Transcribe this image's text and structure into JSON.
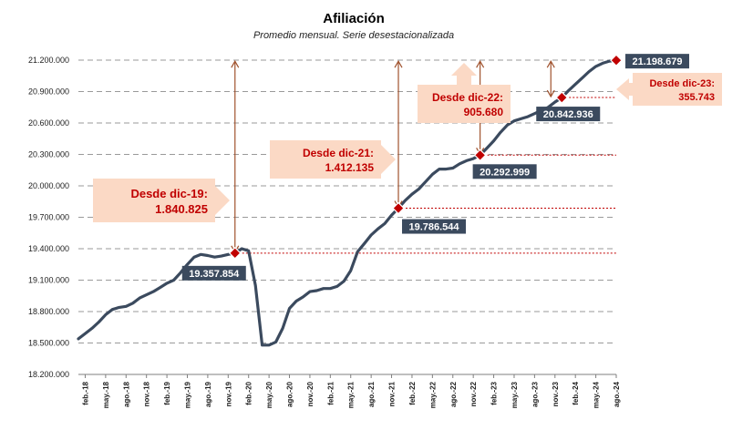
{
  "chart_data": {
    "type": "line",
    "title": "Afiliación",
    "subtitle": "Promedio mensual. Serie desestacionalizada",
    "xlabel": "",
    "ylabel": "",
    "ylim": [
      18200000,
      21200000
    ],
    "yticks": [
      18200000,
      18500000,
      18800000,
      19100000,
      19400000,
      19700000,
      20000000,
      20300000,
      20600000,
      20900000,
      21200000
    ],
    "ytick_labels": [
      "18.200.000",
      "18.500.000",
      "18.800.000",
      "19.100.000",
      "19.400.000",
      "19.700.000",
      "20.000.000",
      "20.300.000",
      "20.600.000",
      "20.900.000",
      "21.200.000"
    ],
    "xtick_labels": [
      "feb.-18",
      "may.-18",
      "ago.-18",
      "nov.-18",
      "feb.-19",
      "may.-19",
      "ago.-19",
      "nov.-19",
      "feb.-20",
      "may.-20",
      "ago.-20",
      "nov.-20",
      "feb.-21",
      "may.-21",
      "ago.-21",
      "nov.-21",
      "feb.-22",
      "may.-22",
      "ago.-22",
      "nov.-22",
      "feb.-23",
      "may.-23",
      "ago.-23",
      "nov.-23",
      "feb.-24",
      "may.-24",
      "ago.-24"
    ],
    "first_month": "ene.-18",
    "grid": true,
    "series": [
      {
        "name": "Afiliación",
        "color": "#3b4a5e",
        "values": [
          18540000,
          18590000,
          18640000,
          18700000,
          18770000,
          18820000,
          18840000,
          18850000,
          18880000,
          18930000,
          18960000,
          18990000,
          19030000,
          19070000,
          19100000,
          19170000,
          19250000,
          19320000,
          19345000,
          19335000,
          19320000,
          19330000,
          19345000,
          19357854,
          19400000,
          19380000,
          19050000,
          18480000,
          18480000,
          18510000,
          18640000,
          18830000,
          18900000,
          18940000,
          18990000,
          19000000,
          19020000,
          19020000,
          19040000,
          19090000,
          19190000,
          19370000,
          19450000,
          19530000,
          19590000,
          19640000,
          19720000,
          19786544,
          19860000,
          19920000,
          19970000,
          20040000,
          20110000,
          20160000,
          20160000,
          20170000,
          20210000,
          20240000,
          20260000,
          20292999,
          20360000,
          20430000,
          20510000,
          20580000,
          20620000,
          20640000,
          20660000,
          20690000,
          20720000,
          20750000,
          20800000,
          20842936,
          20910000,
          20970000,
          21030000,
          21090000,
          21140000,
          21170000,
          21190000,
          21198679
        ]
      }
    ],
    "markers": [
      {
        "date": "dic.-19",
        "value": 19357854,
        "label": "19.357.854"
      },
      {
        "date": "dic.-21",
        "value": 19786544,
        "label": "19.786.544"
      },
      {
        "date": "dic.-22",
        "value": 20292999,
        "label": "20.292.999"
      },
      {
        "date": "dic.-23",
        "value": 20842936,
        "label": "20.842.936"
      },
      {
        "date": "ago.-24",
        "value": 21198679,
        "label": "21.198.679"
      }
    ],
    "annotations": [
      {
        "marker": 0,
        "line1": "Desde dic-19:",
        "line2": "1.840.825"
      },
      {
        "marker": 1,
        "line1": "Desde dic-21:",
        "line2": "1.412.135"
      },
      {
        "marker": 2,
        "line1": "Desde dic-22:",
        "line2": "905.680"
      },
      {
        "marker": 3,
        "line1": "Desde dic-23:",
        "line2": "355.743"
      }
    ]
  }
}
